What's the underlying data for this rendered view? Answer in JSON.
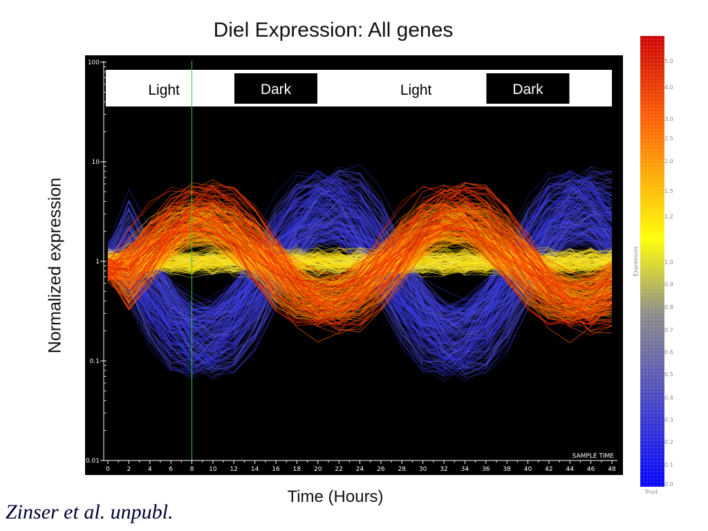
{
  "page": {
    "title": "Diel Expression: All genes",
    "citation": "Zinser et al. unpubl."
  },
  "chart_data": {
    "type": "line",
    "title": "Diel Expression: All genes",
    "xlabel": "Time (Hours)",
    "ylabel": "Normalized expression",
    "x_ticks": [
      0,
      2,
      4,
      6,
      8,
      10,
      12,
      14,
      16,
      18,
      20,
      22,
      24,
      26,
      28,
      30,
      32,
      34,
      36,
      38,
      40,
      42,
      44,
      46,
      48
    ],
    "xlim": [
      0,
      48
    ],
    "y_scale": "log",
    "y_ticks": [
      {
        "value": 100,
        "label": "100"
      },
      {
        "value": 10,
        "label": "10"
      },
      {
        "value": 1,
        "label": "1"
      },
      {
        "value": 0.1,
        "label": "0.1"
      },
      {
        "value": 0.01,
        "label": "0.01"
      }
    ],
    "ylim": [
      0.01,
      100
    ],
    "background": "#000000",
    "marker_line": {
      "x": 8,
      "color": "#33cc33"
    },
    "panel_label": "SAMPLE TIME",
    "periods": [
      {
        "label": "Light",
        "x_start": 0,
        "x_end": 12,
        "style": "light"
      },
      {
        "label": "Dark",
        "x_start": 12,
        "x_end": 20,
        "style": "dark"
      },
      {
        "label": "Light",
        "x_start": 24,
        "x_end": 36,
        "style": "light"
      },
      {
        "label": "Dark",
        "x_start": 36,
        "x_end": 44,
        "style": "dark"
      }
    ],
    "series_groups": [
      {
        "color_class": "red",
        "pattern": "peak near 8-10 h and 32-34 h, trough near 20 h and 44 h",
        "peak_value": 9,
        "trough_value": 0.35
      },
      {
        "color_class": "orange",
        "pattern": "peak near 10 h and 32 h",
        "peak_value": 5,
        "trough_value": 0.4
      },
      {
        "color_class": "yellow",
        "pattern": "near 1 across all times",
        "peak_value": 1.5,
        "trough_value": 0.7
      },
      {
        "color_class": "blue",
        "pattern": "trough near 8 h and 30-32 h, peak near 20-24 h and 44-48 h",
        "peak_value": 5,
        "trough_value": 0.06
      }
    ],
    "color_scale": {
      "title": "Expression",
      "footer": "Trust",
      "ticks": [
        "5.0",
        "4.0",
        "3.0",
        "2.5",
        "2.0",
        "1.5",
        "1.2",
        "1.0",
        "0.9",
        "0.8",
        "0.7",
        "0.6",
        "0.5",
        "0.4",
        "0.3",
        "0.2",
        "0.1",
        "0.0"
      ],
      "colors": [
        "#cc0000",
        "#ff6600",
        "#ffff00",
        "#888888",
        "#0000ff"
      ]
    }
  }
}
